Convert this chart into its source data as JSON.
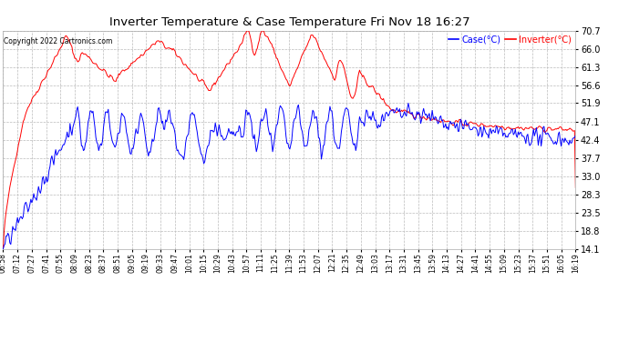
{
  "title": "Inverter Temperature & Case Temperature Fri Nov 18 16:27",
  "copyright": "Copyright 2022 Cartronics.com",
  "legend_case": "Case(°C)",
  "legend_inverter": "Inverter(°C)",
  "ylabel_values": [
    14.1,
    18.8,
    23.5,
    28.3,
    33.0,
    37.7,
    42.4,
    47.1,
    51.9,
    56.6,
    61.3,
    66.0,
    70.7
  ],
  "ylim": [
    14.1,
    70.7
  ],
  "bg_color": "#ffffff",
  "plot_bg_color": "#ffffff",
  "grid_color": "#bbbbbb",
  "case_color": "blue",
  "inverter_color": "red",
  "title_color": "black",
  "copyright_color": "black",
  "x_labels": [
    "06:58",
    "07:12",
    "07:27",
    "07:41",
    "07:55",
    "08:09",
    "08:23",
    "08:37",
    "08:51",
    "09:05",
    "09:19",
    "09:33",
    "09:47",
    "10:01",
    "10:15",
    "10:29",
    "10:43",
    "10:57",
    "11:11",
    "11:25",
    "11:39",
    "11:53",
    "12:07",
    "12:21",
    "12:35",
    "12:49",
    "13:03",
    "13:17",
    "13:31",
    "13:45",
    "13:59",
    "14:13",
    "14:27",
    "14:41",
    "14:55",
    "15:09",
    "15:23",
    "15:37",
    "15:51",
    "16:05",
    "16:19"
  ],
  "n_points": 600
}
